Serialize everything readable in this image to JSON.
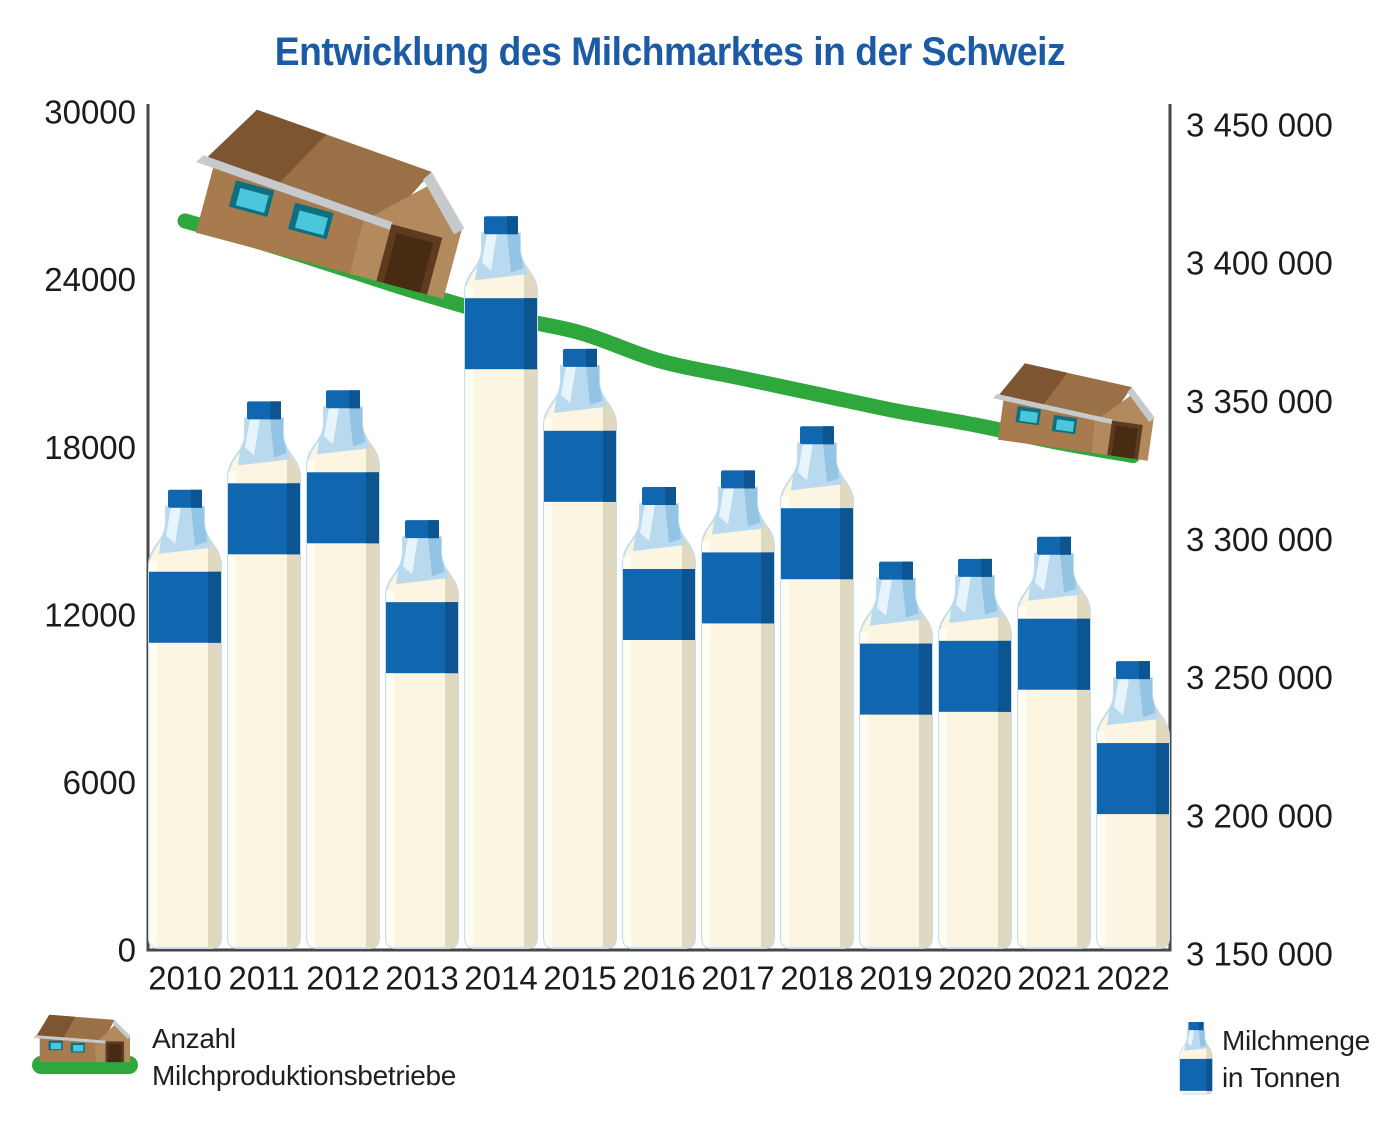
{
  "title": "Entwicklung des Milchmarktes in der Schweiz",
  "legend": {
    "farms_line1": "Anzahl",
    "farms_line2": "Milchproduktionsbetriebe",
    "milk_line1": "Milchmenge",
    "milk_line2": "in Tonnen"
  },
  "colors": {
    "title_blue": "#1B5AA5",
    "bottle_blue": "#1167AF",
    "bottle_blue_dark": "#0C5590",
    "bottle_cream": "#FBF5E1",
    "bottle_cream_shade": "#E1D8C0",
    "bottle_neck_blue": "#B9DAEE",
    "bottle_outline": "#C2DFF1",
    "line_green": "#2EA73C",
    "axis_gray": "#474747",
    "label_color": "#1C1C1C",
    "house_roof": "#9A7046",
    "house_roof_dark": "#7D5531",
    "house_wall": "#A87B4E",
    "house_gable": "#B28A5E",
    "house_door": "#5D3A20",
    "house_door_dark": "#472B13",
    "house_trim": "#C7CACC",
    "window_frame": "#0E6F81",
    "window_glass": "#4BC7DB"
  },
  "chart_data": {
    "type": "combo",
    "title": "Entwicklung des Milchmarktes in der Schweiz",
    "categories": [
      "2010",
      "2011",
      "2012",
      "2013",
      "2014",
      "2015",
      "2016",
      "2017",
      "2018",
      "2019",
      "2020",
      "2021",
      "2022"
    ],
    "series": [
      {
        "name": "Milchmenge in Tonnen",
        "type": "bar",
        "marker": "milk-bottle",
        "axis": "right",
        "values": [
          3318000,
          3350000,
          3354000,
          3307000,
          3417000,
          3369000,
          3319000,
          3325000,
          3341000,
          3292000,
          3293000,
          3301000,
          3256000
        ]
      },
      {
        "name": "Anzahl Milchproduktionsbetriebe",
        "type": "line",
        "marker": "house",
        "axis": "left",
        "values": [
          26100,
          25300,
          24400,
          23500,
          22700,
          22100,
          21100,
          20500,
          19900,
          19300,
          18800,
          18200,
          17700
        ]
      }
    ],
    "left_axis": {
      "min": 0,
      "max": 30000,
      "ticks": [
        0,
        6000,
        12000,
        18000,
        24000,
        30000
      ],
      "labels": [
        "0",
        "6000",
        "12000",
        "18000",
        "24000",
        "30000"
      ]
    },
    "right_axis": {
      "min": 3150000,
      "max": 3450000,
      "ticks": [
        3150000,
        3200000,
        3250000,
        3300000,
        3350000,
        3400000,
        3450000
      ],
      "labels": [
        "3 150 000",
        "3 200 000",
        "3 250 000",
        "3 300 000",
        "3 350 000",
        "3 400 000",
        "3 450 000"
      ]
    },
    "grid": false,
    "legend_position": "bottom",
    "values_approximate": true
  }
}
